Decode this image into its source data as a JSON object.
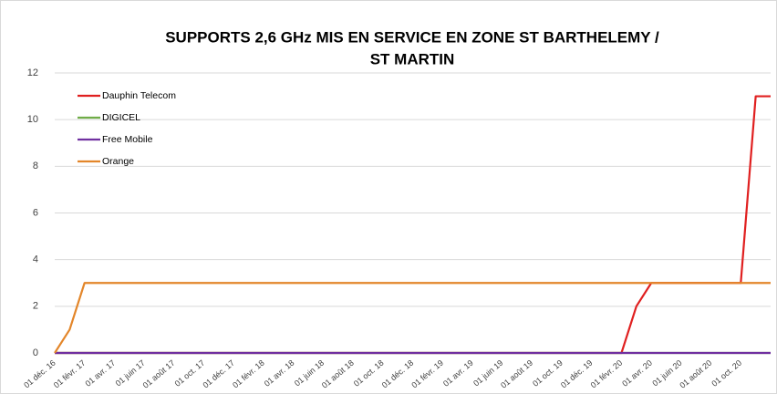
{
  "chart_data": {
    "type": "line",
    "title": [
      "SUPPORTS 2,6 GHz MIS EN SERVICE  EN ZONE ST BARTHELEMY /",
      "ST MARTIN"
    ],
    "categories": [
      "01 déc. 16",
      null,
      "01 févr. 17",
      null,
      "01 avr. 17",
      null,
      "01 juin 17",
      null,
      "01 août 17",
      null,
      "01 oct. 17",
      null,
      "01 déc. 17",
      null,
      "01 févr. 18",
      null,
      "01 avr. 18",
      null,
      "01 juin 18",
      null,
      "01 août 18",
      null,
      "01 oct. 18",
      null,
      "01 déc. 18",
      null,
      "01 févr. 19",
      null,
      "01 avr. 19",
      null,
      "01 juin 19",
      null,
      "01 août 19",
      null,
      "01 oct. 19",
      null,
      "01 déc. 19",
      null,
      "01 févr. 20",
      null,
      "01 avr. 20",
      null,
      "01 juin 20",
      null,
      "01 août 20",
      null,
      "01 oct. 20",
      null,
      null
    ],
    "series": [
      {
        "name": "Dauphin Telecom",
        "color": "#e02020",
        "values": [
          0,
          0,
          0,
          0,
          0,
          0,
          0,
          0,
          0,
          0,
          0,
          0,
          0,
          0,
          0,
          0,
          0,
          0,
          0,
          0,
          0,
          0,
          0,
          0,
          0,
          0,
          0,
          0,
          0,
          0,
          0,
          0,
          0,
          0,
          0,
          0,
          0,
          0,
          0,
          2,
          3,
          3,
          3,
          3,
          3,
          3,
          3,
          11,
          11
        ]
      },
      {
        "name": "DIGICEL",
        "color": "#70ad47",
        "values": [
          0,
          0,
          0,
          0,
          0,
          0,
          0,
          0,
          0,
          0,
          0,
          0,
          0,
          0,
          0,
          0,
          0,
          0,
          0,
          0,
          0,
          0,
          0,
          0,
          0,
          0,
          0,
          0,
          0,
          0,
          0,
          0,
          0,
          0,
          0,
          0,
          0,
          0,
          0,
          0,
          0,
          0,
          0,
          0,
          0,
          0,
          0,
          0,
          0
        ]
      },
      {
        "name": "Free Mobile",
        "color": "#7030a0",
        "values": [
          0,
          0,
          0,
          0,
          0,
          0,
          0,
          0,
          0,
          0,
          0,
          0,
          0,
          0,
          0,
          0,
          0,
          0,
          0,
          0,
          0,
          0,
          0,
          0,
          0,
          0,
          0,
          0,
          0,
          0,
          0,
          0,
          0,
          0,
          0,
          0,
          0,
          0,
          0,
          0,
          0,
          0,
          0,
          0,
          0,
          0,
          0,
          0,
          0
        ]
      },
      {
        "name": "Orange",
        "color": "#e3862a",
        "values": [
          0,
          1,
          3,
          3,
          3,
          3,
          3,
          3,
          3,
          3,
          3,
          3,
          3,
          3,
          3,
          3,
          3,
          3,
          3,
          3,
          3,
          3,
          3,
          3,
          3,
          3,
          3,
          3,
          3,
          3,
          3,
          3,
          3,
          3,
          3,
          3,
          3,
          3,
          3,
          3,
          3,
          3,
          3,
          3,
          3,
          3,
          3,
          3,
          3
        ]
      }
    ],
    "ylim": [
      0,
      12
    ],
    "yticks": [
      0,
      2,
      4,
      6,
      8,
      10,
      12
    ],
    "grid": true,
    "legend": "top-left"
  }
}
